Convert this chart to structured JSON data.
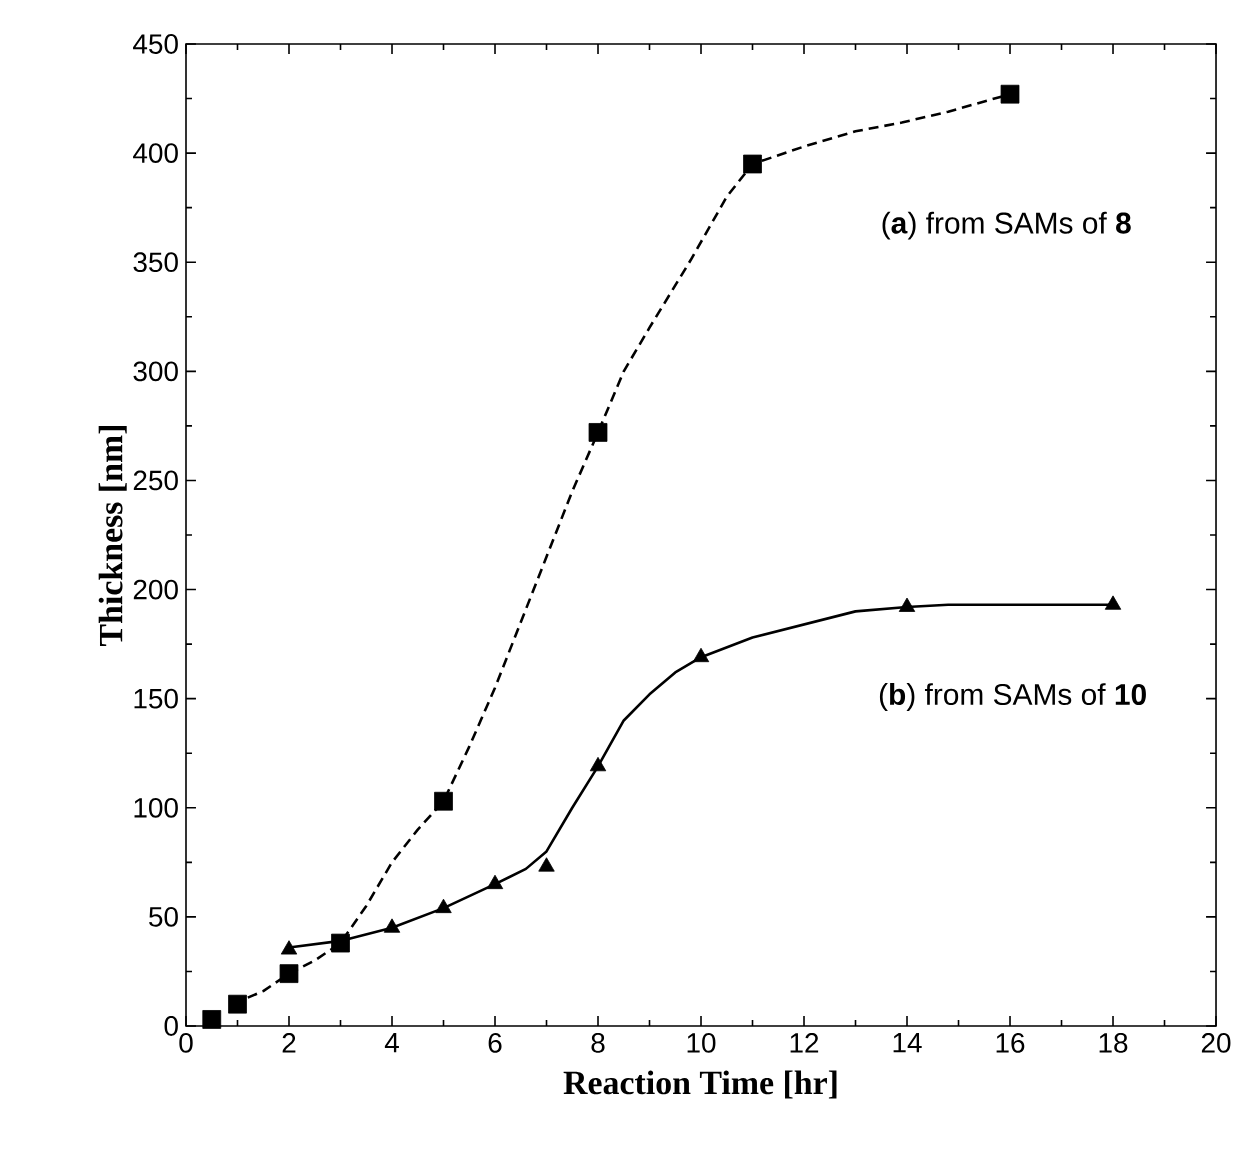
{
  "chart_data": {
    "type": "scatter",
    "xlabel": "Reaction Time [hr]",
    "ylabel": "Thickness [nm]",
    "xlim": [
      0,
      20
    ],
    "ylim": [
      0,
      450
    ],
    "xticks": [
      0,
      2,
      4,
      6,
      8,
      10,
      12,
      14,
      16,
      18,
      20
    ],
    "yticks": [
      0,
      50,
      100,
      150,
      200,
      250,
      300,
      350,
      400,
      450
    ],
    "grid": false,
    "series": [
      {
        "type": "line",
        "color": "#000000",
        "line_style": "dashed",
        "marker": "none",
        "x": [
          1.2,
          1.5,
          2,
          2.5,
          3,
          3.5,
          4,
          4.5,
          5,
          5.5,
          6,
          6.5,
          7,
          7.5,
          8,
          8.5,
          9,
          9.8,
          10.5,
          11,
          12,
          13,
          13.9,
          14.8,
          16
        ],
        "values": [
          13,
          16,
          24,
          30,
          38,
          55,
          75,
          90,
          103,
          128,
          155,
          185,
          215,
          245,
          272,
          300,
          320,
          351,
          380,
          395,
          403,
          410,
          414,
          419,
          427
        ]
      },
      {
        "type": "line",
        "color": "#000000",
        "line_style": "solid",
        "marker": "none",
        "x": [
          2,
          3,
          4,
          5,
          6,
          6.6,
          7,
          7.5,
          8,
          8.5,
          9,
          9.5,
          10,
          11,
          12,
          13,
          14,
          14.8,
          18
        ],
        "values": [
          36,
          39,
          45,
          54,
          65,
          72,
          80,
          100,
          119,
          140,
          152,
          162,
          169,
          178,
          184,
          190,
          192,
          193,
          193
        ]
      },
      {
        "color": "#000000",
        "marker": "square",
        "x": [
          0.5,
          1,
          2,
          3,
          5,
          8,
          11,
          16
        ],
        "values": [
          3,
          10,
          24,
          38,
          103,
          272,
          395,
          427
        ]
      },
      {
        "color": "#000000",
        "marker": "triangle",
        "x": [
          2,
          4,
          5,
          6,
          7,
          8,
          10,
          14,
          18
        ],
        "values": [
          35,
          45,
          54,
          65,
          73,
          119,
          169,
          192,
          193
        ]
      }
    ],
    "annotations": [
      "(**a**) from SAMs of **8**",
      "(**b**) from SAMs of **10**"
    ]
  }
}
